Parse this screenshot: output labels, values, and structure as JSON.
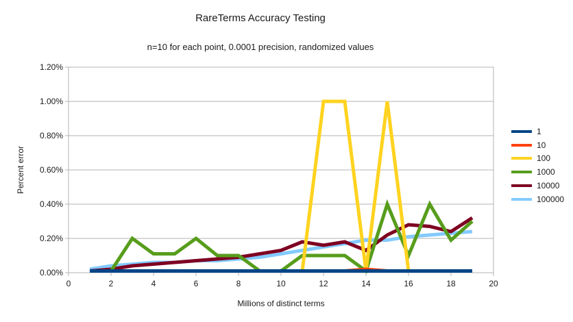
{
  "chart_data": {
    "type": "line",
    "title": "RareTerms Accuracy Testing",
    "subtitle": "n=10 for each point, 0.0001 precision, randomized values",
    "xlabel": "Millions of distinct terms",
    "ylabel": "Percent error",
    "xlim": [
      0,
      20
    ],
    "ylim_percent": [
      0,
      1.2
    ],
    "grid": "horizontal",
    "legend_position": "right",
    "x_tick_values": [
      0,
      2,
      4,
      6,
      8,
      10,
      12,
      14,
      16,
      18,
      20
    ],
    "x_tick_labels": [
      "0",
      "2",
      "4",
      "6",
      "8",
      "10",
      "12",
      "14",
      "16",
      "18",
      "20"
    ],
    "y_tick_values": [
      0,
      0.2,
      0.4,
      0.6,
      0.8,
      1.0,
      1.2
    ],
    "y_tick_labels": [
      "0.00%",
      "0.20%",
      "0.40%",
      "0.60%",
      "0.80%",
      "1.00%",
      "1.20%"
    ],
    "x": [
      1,
      2,
      3,
      4,
      5,
      6,
      7,
      8,
      9,
      10,
      11,
      12,
      13,
      14,
      15,
      16,
      17,
      18,
      19
    ],
    "series": [
      {
        "name": "1",
        "color": "#004586",
        "values": [
          0.01,
          0.01,
          0.01,
          0.01,
          0.01,
          0.01,
          0.01,
          0.01,
          0.01,
          0.01,
          0.01,
          0.01,
          0.01,
          0.01,
          0.01,
          0.01,
          0.01,
          0.01,
          0.01
        ]
      },
      {
        "name": "10",
        "color": "#FF420E",
        "values": [
          0.01,
          0.01,
          0.01,
          0.01,
          0.01,
          0.01,
          0.01,
          0.01,
          0.01,
          0.01,
          0.01,
          0.01,
          0.01,
          0.02,
          0.01,
          0.01,
          0.01,
          0.01,
          0.01
        ]
      },
      {
        "name": "100",
        "color": "#FFD320",
        "values": [
          0.01,
          0.01,
          0.01,
          0.01,
          0.01,
          0.01,
          0.01,
          0.01,
          0.01,
          0.01,
          0.01,
          1.0,
          1.0,
          0.01,
          1.0,
          0.01,
          0.01,
          0.01,
          0.01
        ]
      },
      {
        "name": "1000",
        "color": "#579D1C",
        "values": [
          0.01,
          0.01,
          0.2,
          0.11,
          0.11,
          0.2,
          0.1,
          0.1,
          0.01,
          0.01,
          0.1,
          0.1,
          0.1,
          0.01,
          0.4,
          0.1,
          0.4,
          0.19,
          0.3
        ]
      },
      {
        "name": "10000",
        "color": "#7E0021",
        "values": [
          0.01,
          0.02,
          0.04,
          0.05,
          0.06,
          0.07,
          0.08,
          0.09,
          0.11,
          0.13,
          0.18,
          0.16,
          0.18,
          0.13,
          0.22,
          0.28,
          0.27,
          0.24,
          0.32
        ]
      },
      {
        "name": "100000",
        "color": "#83CAFF",
        "values": [
          0.02,
          0.04,
          0.05,
          0.06,
          0.06,
          0.07,
          0.07,
          0.08,
          0.09,
          0.11,
          0.13,
          0.15,
          0.17,
          0.19,
          0.19,
          0.21,
          0.22,
          0.23,
          0.24
        ]
      }
    ],
    "colors": {
      "grid": "#b3b3b3",
      "axis": "#b3b3b3",
      "text": "#1a1a1a",
      "background": "#ffffff"
    }
  }
}
